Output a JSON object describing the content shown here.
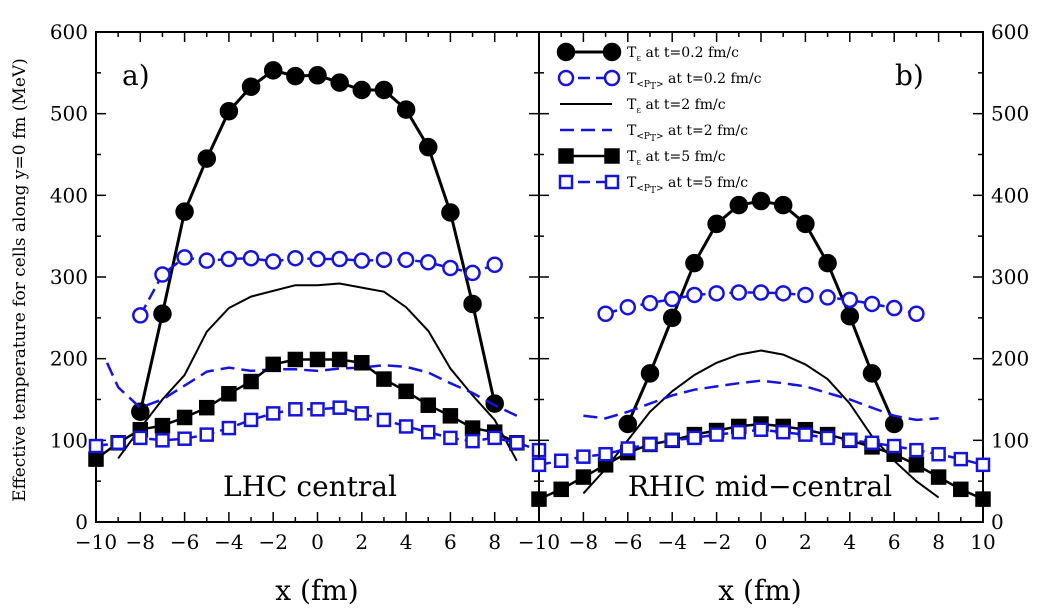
{
  "chart_data": [
    {
      "type": "line",
      "panel_label": "a)",
      "annotation": "LHC central",
      "xlabel": "x (fm)",
      "ylabel": "Effective temperature for cells along y=0 fm (MeV)",
      "xlim": [
        -10,
        10
      ],
      "ylim": [
        0,
        600
      ],
      "xticks": [
        -10,
        -8,
        -6,
        -4,
        -2,
        0,
        2,
        4,
        6,
        8
      ],
      "yticks": [
        0,
        100,
        200,
        300,
        400,
        500,
        600
      ],
      "series": [
        {
          "key": "te_02",
          "x": [
            -8,
            -7,
            -6,
            -5,
            -4,
            -3,
            -2,
            -1,
            0,
            1,
            2,
            3,
            4,
            5,
            6,
            7,
            8
          ],
          "y": [
            135,
            255,
            380,
            445,
            503,
            533,
            553,
            546,
            547,
            538,
            529,
            529,
            505,
            459,
            379,
            267,
            145
          ]
        },
        {
          "key": "tpt_02",
          "x": [
            -8,
            -7,
            -6,
            -5,
            -4,
            -3,
            -2,
            -1,
            0,
            1,
            2,
            3,
            4,
            5,
            6,
            7,
            8
          ],
          "y": [
            253,
            303,
            324,
            320,
            322,
            323,
            319,
            323,
            322,
            322,
            320,
            321,
            321,
            318,
            311,
            305,
            315
          ]
        },
        {
          "key": "te_2",
          "x": [
            -9,
            -8,
            -7,
            -6,
            -5,
            -4,
            -3,
            -2,
            -1,
            0,
            1,
            2,
            3,
            4,
            5,
            6,
            7,
            8,
            9
          ],
          "y": [
            78,
            115,
            150,
            180,
            233,
            262,
            276,
            283,
            290,
            290,
            292,
            287,
            282,
            263,
            234,
            188,
            155,
            125,
            75
          ]
        },
        {
          "key": "tpt_2",
          "x": [
            -9.5,
            -9,
            -8,
            -7,
            -6,
            -5,
            -4,
            -3,
            -2,
            -1,
            0,
            1,
            2,
            3,
            4,
            5,
            6,
            7,
            8,
            9
          ],
          "y": [
            195,
            165,
            140,
            150,
            167,
            184,
            189,
            185,
            187,
            187,
            185,
            188,
            189,
            192,
            190,
            183,
            170,
            158,
            143,
            130
          ]
        },
        {
          "key": "te_5",
          "x": [
            -10,
            -9,
            -8,
            -7,
            -6,
            -5,
            -4,
            -3,
            -2,
            -1,
            0,
            1,
            2,
            3,
            4,
            5,
            6,
            7,
            8,
            9
          ],
          "y": [
            77,
            97,
            113,
            118,
            128,
            140,
            157,
            172,
            193,
            199,
            199,
            199,
            195,
            175,
            160,
            143,
            130,
            115,
            110,
            97
          ]
        },
        {
          "key": "tpt_5",
          "x": [
            -10,
            -9,
            -8,
            -7,
            -6,
            -5,
            -4,
            -3,
            -2,
            -1,
            0,
            1,
            2,
            3,
            4,
            5,
            6,
            7,
            8,
            9,
            10
          ],
          "y": [
            93,
            97,
            103,
            100,
            102,
            107,
            115,
            125,
            133,
            138,
            138,
            140,
            133,
            125,
            117,
            110,
            103,
            99,
            103,
            97,
            88
          ]
        }
      ]
    },
    {
      "type": "line",
      "panel_label": "b)",
      "annotation": "RHIC mid−central",
      "xlabel": "x (fm)",
      "xlim": [
        -10,
        10
      ],
      "ylim": [
        0,
        600
      ],
      "xticks": [
        -10,
        -8,
        -6,
        -4,
        -2,
        0,
        2,
        4,
        6,
        8,
        10
      ],
      "yticks": [
        0,
        100,
        200,
        300,
        400,
        500,
        600
      ],
      "series": [
        {
          "key": "te_02",
          "x": [
            -6,
            -5,
            -4,
            -3,
            -2,
            -1,
            0,
            1,
            2,
            3,
            4,
            5,
            6
          ],
          "y": [
            120,
            182,
            250,
            317,
            365,
            388,
            393,
            388,
            365,
            317,
            252,
            182,
            120
          ]
        },
        {
          "key": "tpt_02",
          "x": [
            -7,
            -6,
            -5,
            -4,
            -3,
            -2,
            -1,
            0,
            1,
            2,
            3,
            4,
            5,
            6,
            7
          ],
          "y": [
            255,
            263,
            268,
            273,
            278,
            280,
            281,
            281,
            280,
            278,
            275,
            272,
            267,
            262,
            255
          ]
        },
        {
          "key": "te_2",
          "x": [
            -8,
            -7,
            -6,
            -5,
            -4,
            -3,
            -2,
            -1,
            0,
            1,
            2,
            3,
            4,
            5,
            6,
            7,
            8
          ],
          "y": [
            35,
            65,
            100,
            135,
            160,
            180,
            195,
            205,
            210,
            205,
            193,
            175,
            145,
            105,
            75,
            50,
            30
          ]
        },
        {
          "key": "tpt_2",
          "x": [
            -8,
            -7,
            -6,
            -5,
            -4,
            -3,
            -2,
            -1,
            0,
            1,
            2,
            3,
            4,
            5,
            6,
            7,
            8
          ],
          "y": [
            130,
            127,
            135,
            145,
            155,
            162,
            166,
            170,
            173,
            170,
            166,
            158,
            150,
            140,
            130,
            125,
            127
          ]
        },
        {
          "key": "te_5",
          "x": [
            -10,
            -9,
            -8,
            -7,
            -6,
            -5,
            -4,
            -3,
            -2,
            -1,
            0,
            1,
            2,
            3,
            4,
            5,
            6,
            7,
            8,
            9,
            10
          ],
          "y": [
            28,
            40,
            55,
            70,
            85,
            95,
            100,
            107,
            112,
            117,
            120,
            117,
            113,
            107,
            100,
            92,
            83,
            70,
            55,
            40,
            28
          ]
        },
        {
          "key": "tpt_5",
          "x": [
            -10,
            -9,
            -8,
            -7,
            -6,
            -5,
            -4,
            -3,
            -2,
            -1,
            0,
            1,
            2,
            3,
            4,
            5,
            6,
            7,
            8,
            9,
            10
          ],
          "y": [
            70,
            75,
            80,
            83,
            90,
            95,
            100,
            103,
            107,
            110,
            113,
            110,
            107,
            103,
            100,
            97,
            93,
            88,
            83,
            77,
            70
          ]
        }
      ]
    }
  ],
  "legend": {
    "items": [
      {
        "key": "te_02",
        "main": "T",
        "sub": "ε",
        "rest": " at t=0.2 fm/c"
      },
      {
        "key": "tpt_02",
        "main": "T",
        "sub": "<P",
        "subsub": "T",
        "sub2": ">",
        "rest": " at t=0.2 fm/c"
      },
      {
        "key": "te_2",
        "main": "T",
        "sub": "ε",
        "rest": " at t=2 fm/c"
      },
      {
        "key": "tpt_2",
        "main": "T",
        "sub": "<P",
        "subsub": "T",
        "sub2": ">",
        "rest": " at t=2 fm/c"
      },
      {
        "key": "te_5",
        "main": "T",
        "sub": "ε",
        "rest": " at t=5 fm/c"
      },
      {
        "key": "tpt_5",
        "main": "T",
        "sub": "<P",
        "subsub": "T",
        "sub2": ">",
        "rest": " at t=5 fm/c"
      }
    ]
  },
  "colors": {
    "black": "#000000",
    "blue": "#1414dc"
  }
}
